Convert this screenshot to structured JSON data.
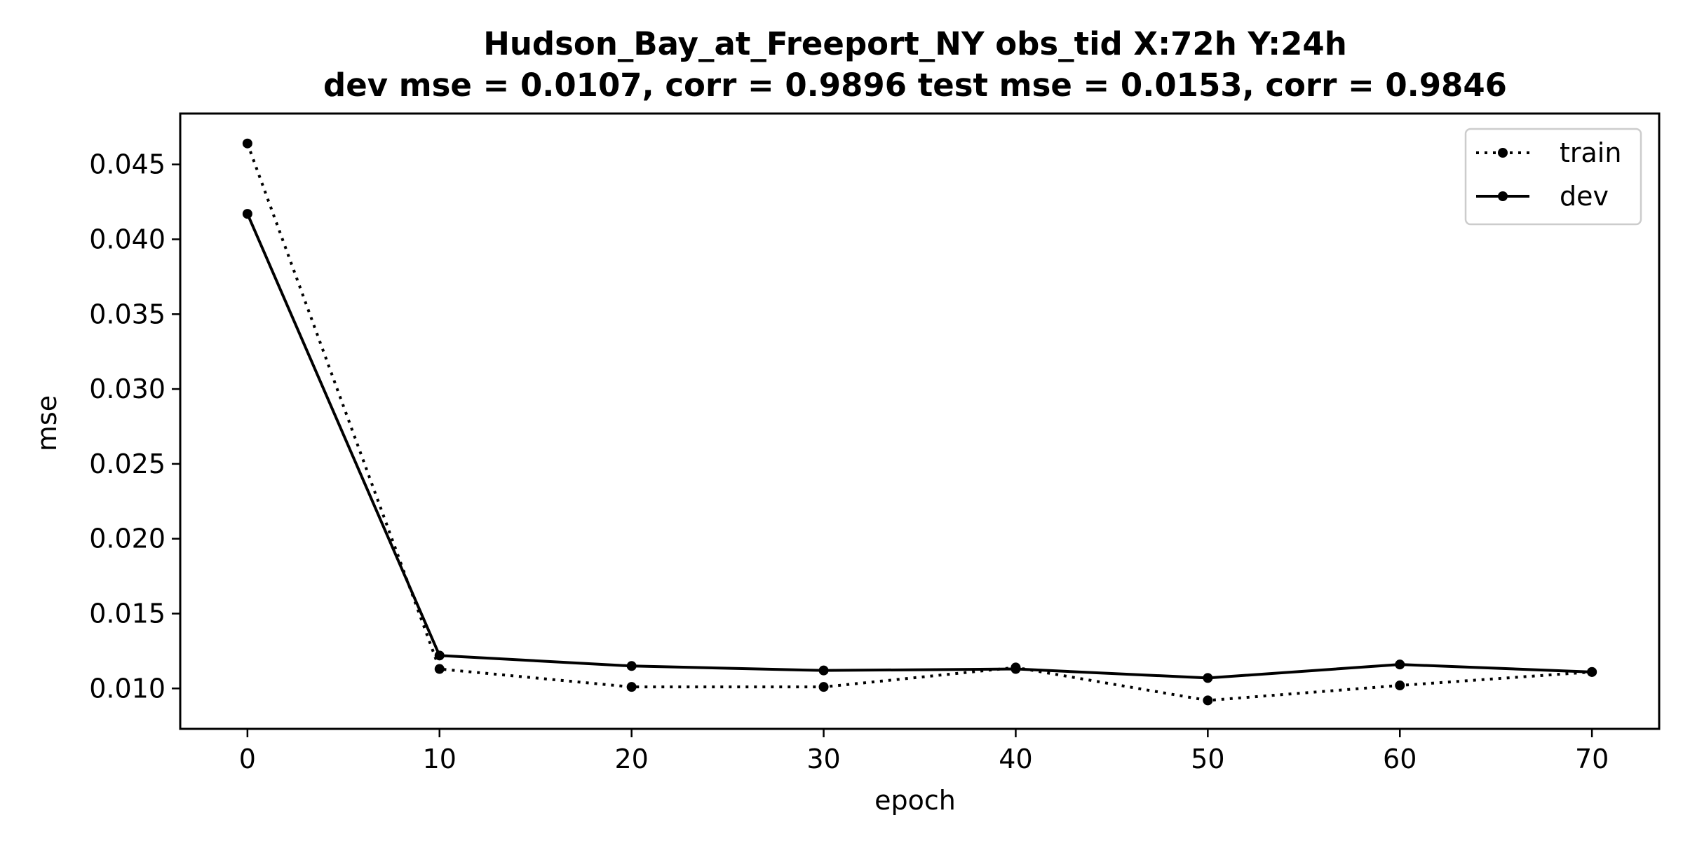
{
  "chart_data": {
    "type": "line",
    "title": "Hudson_Bay_at_Freeport_NY   obs_tid   X:72h   Y:24h",
    "subtitle": "dev mse = 0.0107, corr = 0.9896   test mse = 0.0153, corr = 0.9846",
    "xlabel": "epoch",
    "ylabel": "mse",
    "x": [
      0,
      10,
      20,
      30,
      40,
      50,
      60,
      70
    ],
    "xlim": [
      -3.5,
      73.5
    ],
    "ylim": [
      0.0073,
      0.0484
    ],
    "xticks": [
      0,
      10,
      20,
      30,
      40,
      50,
      60,
      70
    ],
    "yticks": [
      0.01,
      0.015,
      0.02,
      0.025,
      0.03,
      0.035,
      0.04,
      0.045
    ],
    "xtick_labels": [
      "0",
      "10",
      "20",
      "30",
      "40",
      "50",
      "60",
      "70"
    ],
    "ytick_labels": [
      "0.010",
      "0.015",
      "0.020",
      "0.025",
      "0.030",
      "0.035",
      "0.040",
      "0.045"
    ],
    "grid": false,
    "legend_position": "top-right",
    "series": [
      {
        "name": "train",
        "style": "dotted",
        "color": "#000000",
        "values": [
          0.0464,
          0.0113,
          0.0101,
          0.0101,
          0.0114,
          0.0092,
          0.0102,
          0.0111
        ]
      },
      {
        "name": "dev",
        "style": "solid",
        "color": "#000000",
        "values": [
          0.0417,
          0.0122,
          0.0115,
          0.0112,
          0.0113,
          0.0107,
          0.0116,
          0.0111
        ]
      }
    ]
  }
}
